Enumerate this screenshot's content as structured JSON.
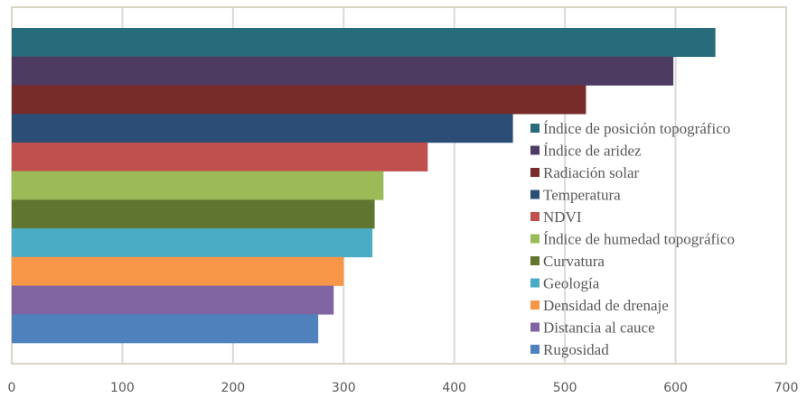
{
  "chart_data": {
    "type": "bar",
    "orientation": "horizontal",
    "title": "",
    "xlabel": "",
    "ylabel": "",
    "xlim": [
      0,
      700
    ],
    "xticks": [
      0,
      100,
      200,
      300,
      400,
      500,
      600,
      700
    ],
    "xtick_labels": [
      "0",
      "100",
      "200",
      "300",
      "400",
      "500",
      "600",
      "700"
    ],
    "grid": "vertical",
    "legend_position": "right",
    "series": [
      {
        "name": "Índice de posición topográfico",
        "value": 636,
        "color": "#286B7A"
      },
      {
        "name": "Índice de aridez",
        "value": 598,
        "color": "#4D3B62"
      },
      {
        "name": "Radiación solar",
        "value": 519,
        "color": "#772C2A"
      },
      {
        "name": "Temperatura",
        "value": 453,
        "color": "#2C4D75"
      },
      {
        "name": "NDVI",
        "value": 376,
        "color": "#C0504D"
      },
      {
        "name": "Índice de humedad topográfico",
        "value": 336,
        "color": "#9BBB59"
      },
      {
        "name": "Curvatura",
        "value": 328,
        "color": "#5F7530"
      },
      {
        "name": "Geología",
        "value": 326,
        "color": "#4BACC6"
      },
      {
        "name": "Densidad de drenaje",
        "value": 300,
        "color": "#F79646"
      },
      {
        "name": "Distancia al cauce",
        "value": 291,
        "color": "#8064A2"
      },
      {
        "name": "Rugosidad",
        "value": 277,
        "color": "#4F81BD"
      }
    ]
  }
}
